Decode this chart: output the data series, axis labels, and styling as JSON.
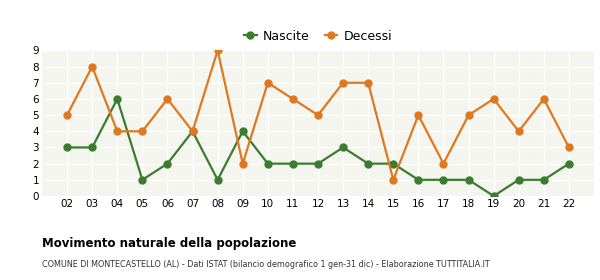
{
  "years": [
    "02",
    "03",
    "04",
    "05",
    "06",
    "07",
    "08",
    "09",
    "10",
    "11",
    "12",
    "13",
    "14",
    "15",
    "16",
    "17",
    "18",
    "19",
    "20",
    "21",
    "22"
  ],
  "nascite": [
    3,
    3,
    6,
    1,
    2,
    4,
    1,
    4,
    2,
    2,
    2,
    3,
    2,
    2,
    1,
    1,
    1,
    0,
    1,
    1,
    2
  ],
  "decessi": [
    5,
    8,
    4,
    4,
    6,
    4,
    9,
    2,
    7,
    6,
    5,
    7,
    7,
    1,
    5,
    2,
    5,
    6,
    4,
    6,
    3
  ],
  "nascite_color": "#3a7d2c",
  "decessi_color": "#e07820",
  "title": "Movimento naturale della popolazione",
  "subtitle": "COMUNE DI MONTECASTELLO (AL) - Dati ISTAT (bilancio demografico 1 gen-31 dic) - Elaborazione TUTTITALIA.IT",
  "legend_nascite": "Nascite",
  "legend_decessi": "Decessi",
  "ylim": [
    0,
    9
  ],
  "yticks": [
    0,
    1,
    2,
    3,
    4,
    5,
    6,
    7,
    8,
    9
  ],
  "bg_color": "#ffffff",
  "plot_bg_color": "#f5f5f0",
  "marker_size": 5,
  "line_width": 1.6
}
